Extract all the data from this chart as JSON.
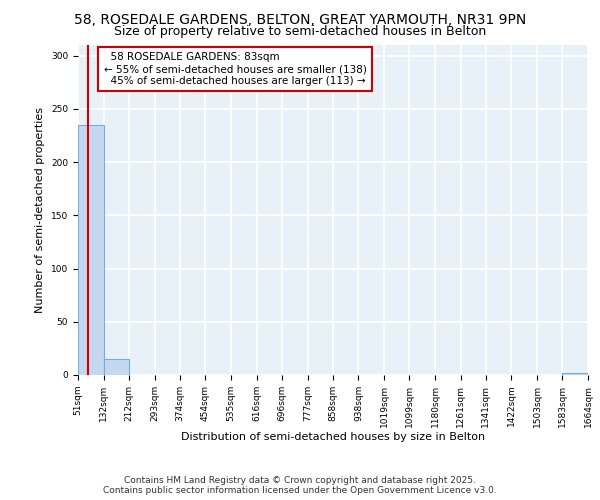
{
  "title": "58, ROSEDALE GARDENS, BELTON, GREAT YARMOUTH, NR31 9PN",
  "subtitle": "Size of property relative to semi-detached houses in Belton",
  "xlabel": "Distribution of semi-detached houses by size in Belton",
  "ylabel": "Number of semi-detached properties",
  "bins": [
    51,
    132,
    212,
    293,
    374,
    454,
    535,
    616,
    696,
    777,
    858,
    938,
    1019,
    1099,
    1180,
    1261,
    1341,
    1422,
    1503,
    1583,
    1664
  ],
  "bar_heights": [
    235,
    15,
    0,
    0,
    0,
    0,
    0,
    0,
    0,
    0,
    0,
    0,
    0,
    0,
    0,
    0,
    0,
    0,
    0,
    2
  ],
  "bar_color": "#c5d8f0",
  "bar_edge_color": "#7aafd4",
  "property_size": 83,
  "property_label": "58 ROSEDALE GARDENS: 83sqm",
  "pct_smaller": 55,
  "pct_larger": 45,
  "n_smaller": 138,
  "n_larger": 113,
  "vline_color": "#cc0000",
  "annotation_box_color": "#cc0000",
  "ylim": [
    0,
    310
  ],
  "yticks": [
    0,
    50,
    100,
    150,
    200,
    250,
    300
  ],
  "footer_line1": "Contains HM Land Registry data © Crown copyright and database right 2025.",
  "footer_line2": "Contains public sector information licensed under the Open Government Licence v3.0.",
  "bg_color": "#e8f0f8",
  "grid_color": "#ffffff",
  "title_fontsize": 10,
  "subtitle_fontsize": 9,
  "axis_label_fontsize": 8,
  "tick_fontsize": 6.5,
  "annotation_fontsize": 7.5,
  "footer_fontsize": 6.5
}
